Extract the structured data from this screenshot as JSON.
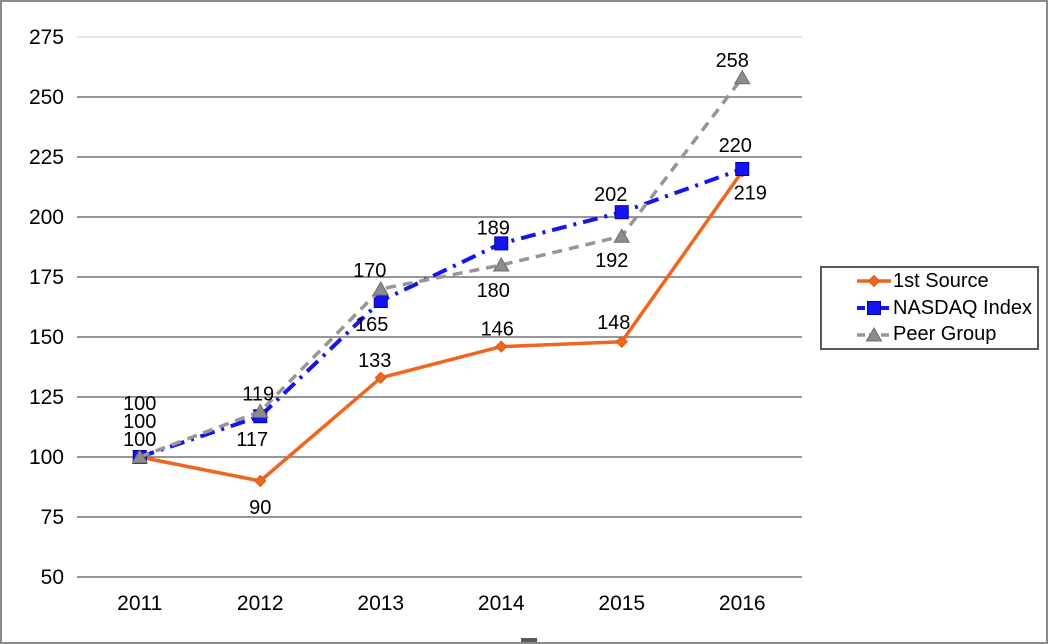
{
  "window": {
    "background": "#ffffff",
    "border_color": "#8a8a8a"
  },
  "chart_data": {
    "type": "line",
    "title": "",
    "xlabel": "",
    "ylabel": "",
    "categories": [
      "2011",
      "2012",
      "2013",
      "2014",
      "2015",
      "2016"
    ],
    "y_axis": {
      "min": 50,
      "max": 275,
      "step": 25,
      "tick_labels": [
        "275",
        "250",
        "225",
        "200",
        "175",
        "150",
        "125",
        "100",
        "75",
        "50"
      ]
    },
    "grid": "on",
    "gridline_color": "#595959",
    "top_gridline_color": "#d4d4d4",
    "axis_text_color": "#000000",
    "series": [
      {
        "name": "1st Source",
        "color": "#F0661E",
        "marker": "diamond",
        "marker_fill": "#F0661E",
        "marker_border": "#E05A10",
        "line_style": "solid",
        "line_width": 3.5,
        "values": [
          100,
          90,
          133,
          146,
          148,
          219
        ],
        "labels": [
          "100",
          "90",
          "133",
          "146",
          "148",
          "219"
        ],
        "label_offsets": [
          [
            0,
            -18
          ],
          [
            0,
            26
          ],
          [
            -6,
            -18
          ],
          [
            -4,
            -18
          ],
          [
            -8,
            -20
          ],
          [
            8,
            21
          ]
        ]
      },
      {
        "name": "NASDAQ Index",
        "color": "#1414F0",
        "marker": "square",
        "marker_fill": "#1414F0",
        "marker_border": "#0000A8",
        "line_style": "dash-dot",
        "line_width": 4,
        "values": [
          100,
          117,
          165,
          189,
          202,
          220
        ],
        "labels": [
          "100",
          "117",
          "165",
          "189",
          "202",
          "220"
        ],
        "label_offsets": [
          [
            0,
            -36
          ],
          [
            -8,
            23
          ],
          [
            -9,
            23
          ],
          [
            -8,
            -16
          ],
          [
            -11,
            -18
          ],
          [
            -7,
            -24
          ]
        ]
      },
      {
        "name": "Peer Group",
        "color": "#969696",
        "marker": "triangle",
        "marker_fill": "#8C8C8C",
        "marker_border": "#6E6E6E",
        "line_style": "dashed",
        "line_width": 3.5,
        "values": [
          100,
          119,
          170,
          180,
          192,
          258
        ],
        "labels": [
          "100",
          "119",
          "170",
          "180",
          "192",
          "258"
        ],
        "label_offsets": [
          [
            0,
            -54
          ],
          [
            -2,
            -18
          ],
          [
            -11,
            -19
          ],
          [
            -8,
            25
          ],
          [
            -10,
            24
          ],
          [
            -10,
            -18
          ]
        ]
      }
    ],
    "legend": {
      "position": "right",
      "entries": [
        "1st Source",
        "NASDAQ Index",
        "Peer Group"
      ]
    }
  }
}
